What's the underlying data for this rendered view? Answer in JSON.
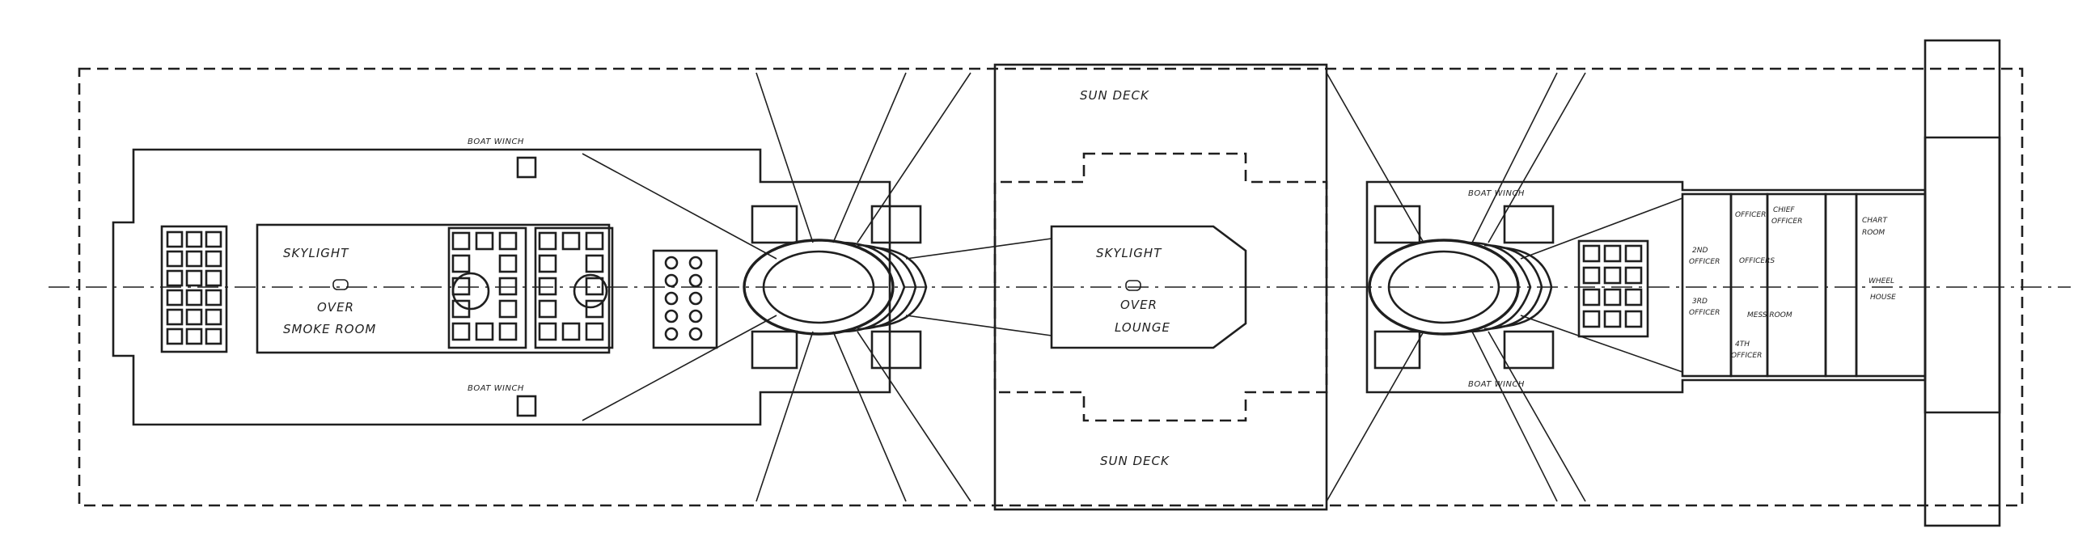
{
  "labels": {
    "sun_deck_fwd": "SUN DECK",
    "sun_deck_aft": "SUN DECK",
    "skylight_smoke_1": "SKYLIGHT",
    "skylight_smoke_2": "OVER",
    "skylight_smoke_3": "SMOKE ROOM",
    "skylight_lounge_1": "SKYLIGHT",
    "skylight_lounge_2": "OVER",
    "skylight_lounge_3": "LOUNGE",
    "boat_winch_aft_top": "BOAT WINCH",
    "boat_winch_aft_bottom": "BOAT WINCH",
    "boat_winch_fwd_top": "BOAT WINCH",
    "boat_winch_fwd_bottom": "BOAT WINCH",
    "officer_1": "OFFICER",
    "officer_2a": "2ND",
    "officer_2b": "OFFICER",
    "officer_3a": "3RD",
    "officer_3b": "OFFICER",
    "chief_officer_1": "CHIEF",
    "chief_officer_2": "OFFICER",
    "officer_4a": "4TH",
    "officer_4b": "OFFICER",
    "officers_mess_1": "OFFICERS",
    "officers_mess_2": "MESS ROOM",
    "chart_room_1": "CHART",
    "chart_room_2": "ROOM",
    "wheel_house_1": "WHEEL",
    "wheel_house_2": "HOUSE"
  }
}
